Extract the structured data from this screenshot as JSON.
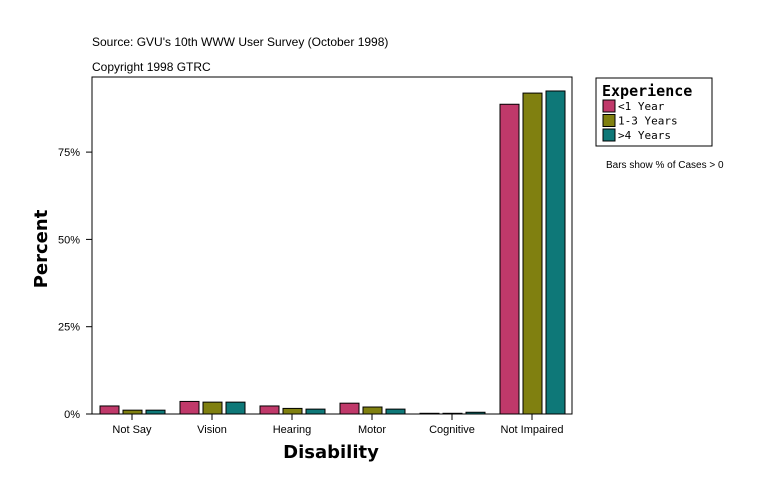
{
  "chart_data": {
    "type": "bar",
    "title": "Source: GVU's 10th WWW User Survey (October 1998)",
    "subtitle": "Copyright 1998 GTRC",
    "xlabel": "Disability",
    "ylabel": "Percent",
    "categories": [
      "Not Say",
      "Vision",
      "Hearing",
      "Motor",
      "Cognitive",
      "Not Impaired"
    ],
    "series": [
      {
        "name": "<1 Year",
        "color": "#c0396a",
        "values": [
          2.3,
          3.6,
          2.3,
          3.1,
          0.2,
          88.7
        ]
      },
      {
        "name": "1-3 Years",
        "color": "#808010",
        "values": [
          1.1,
          3.4,
          1.6,
          2.0,
          0.2,
          91.9
        ]
      },
      {
        "name": ">4 Years",
        "color": "#0e7878",
        "values": [
          1.1,
          3.4,
          1.4,
          1.4,
          0.5,
          92.5
        ]
      }
    ],
    "yticks": [
      "0%",
      "25%",
      "50%",
      "75%"
    ],
    "ylim": [
      0,
      96
    ],
    "legend_title": "Experience",
    "legend_position": "right",
    "note": "Bars show % of Cases > 0",
    "grid": false
  }
}
